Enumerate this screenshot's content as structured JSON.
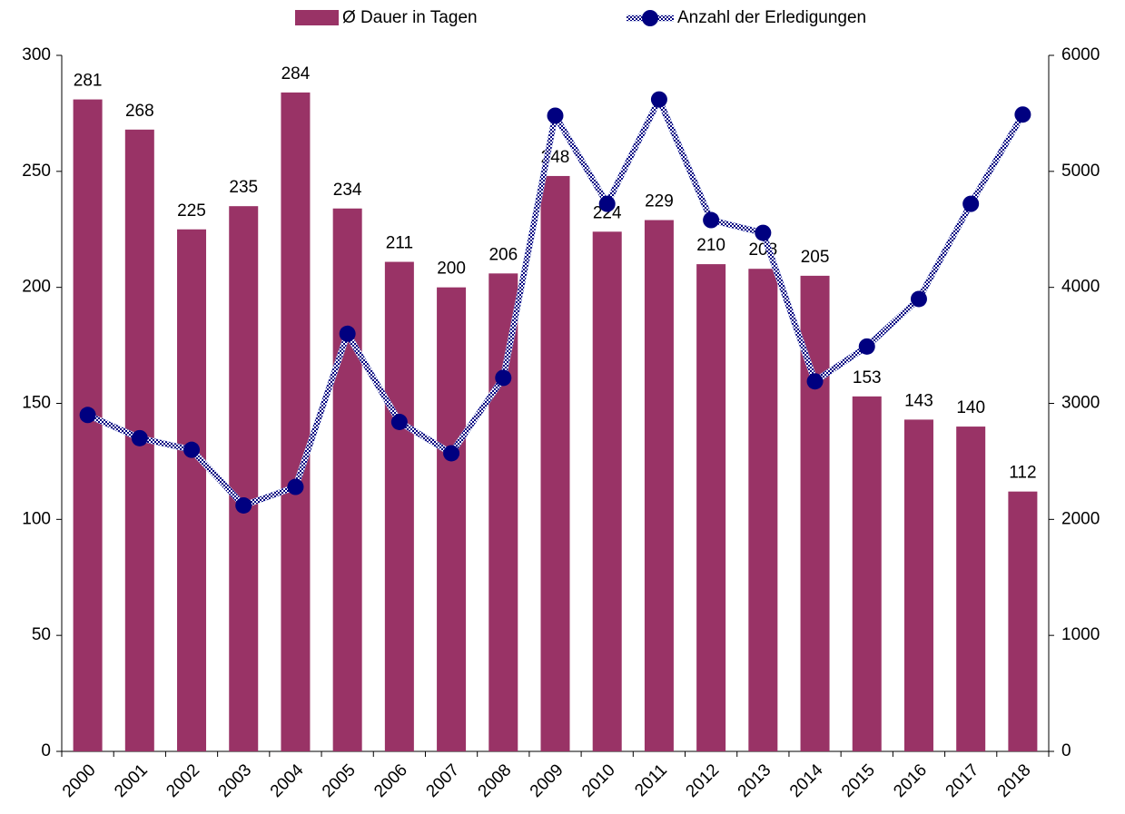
{
  "chart_data": {
    "type": "bar_line",
    "categories": [
      "2000",
      "2001",
      "2002",
      "2003",
      "2004",
      "2005",
      "2006",
      "2007",
      "2008",
      "2009",
      "2010",
      "2011",
      "2012",
      "2013",
      "2014",
      "2015",
      "2016",
      "2017",
      "2018"
    ],
    "series": [
      {
        "name": "Ø Dauer in Tagen",
        "type": "bar",
        "color": "#993366",
        "values": [
          281,
          268,
          225,
          235,
          284,
          234,
          211,
          200,
          206,
          248,
          224,
          229,
          210,
          208,
          205,
          153,
          143,
          140,
          112
        ]
      },
      {
        "name": "Anzahl der Erledigungen",
        "type": "line",
        "axis": "y2",
        "color": "#000080",
        "values": [
          2900,
          2700,
          2600,
          2120,
          2280,
          3600,
          2840,
          2570,
          3220,
          5480,
          4720,
          5620,
          4580,
          4470,
          3190,
          3490,
          3900,
          4720,
          5490
        ]
      }
    ],
    "ylim": [
      0,
      300
    ],
    "yticks": [
      0,
      50,
      100,
      150,
      200,
      250,
      300
    ],
    "y2lim": [
      0,
      6000
    ],
    "y2ticks": [
      0,
      1000,
      2000,
      3000,
      4000,
      5000,
      6000
    ],
    "legend": "top",
    "grid": false
  }
}
